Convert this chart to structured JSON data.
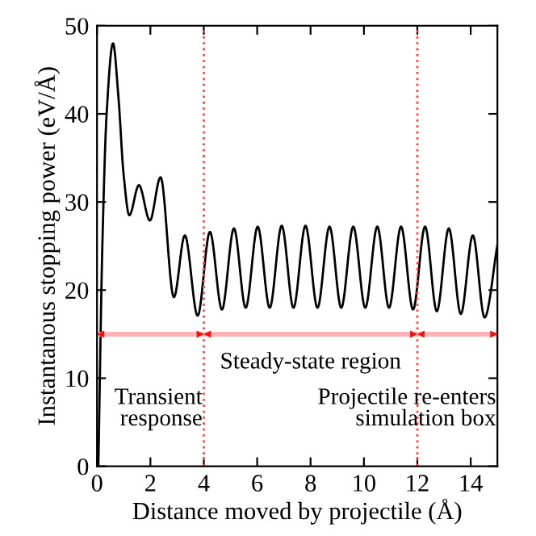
{
  "chart_data": {
    "type": "line",
    "xlabel": "Distance moved by projectile (Å)",
    "ylabel": "Instantanous stopping power (eV/Å)",
    "xlim": [
      0,
      15
    ],
    "ylim": [
      0,
      50
    ],
    "xticks": [
      0,
      2,
      4,
      6,
      8,
      10,
      12,
      14
    ],
    "yticks": [
      0,
      10,
      20,
      30,
      40,
      50
    ],
    "grid": false,
    "legend": false,
    "marker": "none",
    "line_style": "solid",
    "series": [
      {
        "color": "#000000",
        "x": [
          0.05,
          0.2,
          0.36,
          0.6,
          0.8,
          1.0,
          1.21,
          1.57,
          1.98,
          2.38,
          2.88,
          3.29,
          3.77,
          4.23,
          4.68,
          5.13,
          5.57,
          6.02,
          6.47,
          6.92,
          7.36,
          7.81,
          8.26,
          8.71,
          9.15,
          9.6,
          10.05,
          10.5,
          10.94,
          11.39,
          11.84,
          12.29,
          12.73,
          13.18,
          13.63,
          14.08,
          14.52,
          15.0
        ],
        "values": [
          0,
          25,
          40,
          48,
          42,
          33,
          28.5,
          31.9,
          27.9,
          32.8,
          19.2,
          26.2,
          17.1,
          26.6,
          17.8,
          27,
          18,
          27.2,
          18,
          27.3,
          18,
          27.3,
          18,
          27.2,
          18,
          27.2,
          18,
          27.2,
          18,
          27.2,
          17.8,
          27.2,
          17.6,
          27,
          17.3,
          26.2,
          16.9,
          25.1
        ]
      }
    ],
    "ref_lines": [
      {
        "axis": "x",
        "value": 4,
        "color": "#ff4444",
        "line_style": "dotted"
      },
      {
        "axis": "x",
        "value": 12,
        "color": "#ff4444",
        "line_style": "dotted"
      }
    ],
    "annotations": [
      "Transient\nresponse",
      "Steady-state region",
      "Projectile re-enters\nsimulation box"
    ]
  }
}
